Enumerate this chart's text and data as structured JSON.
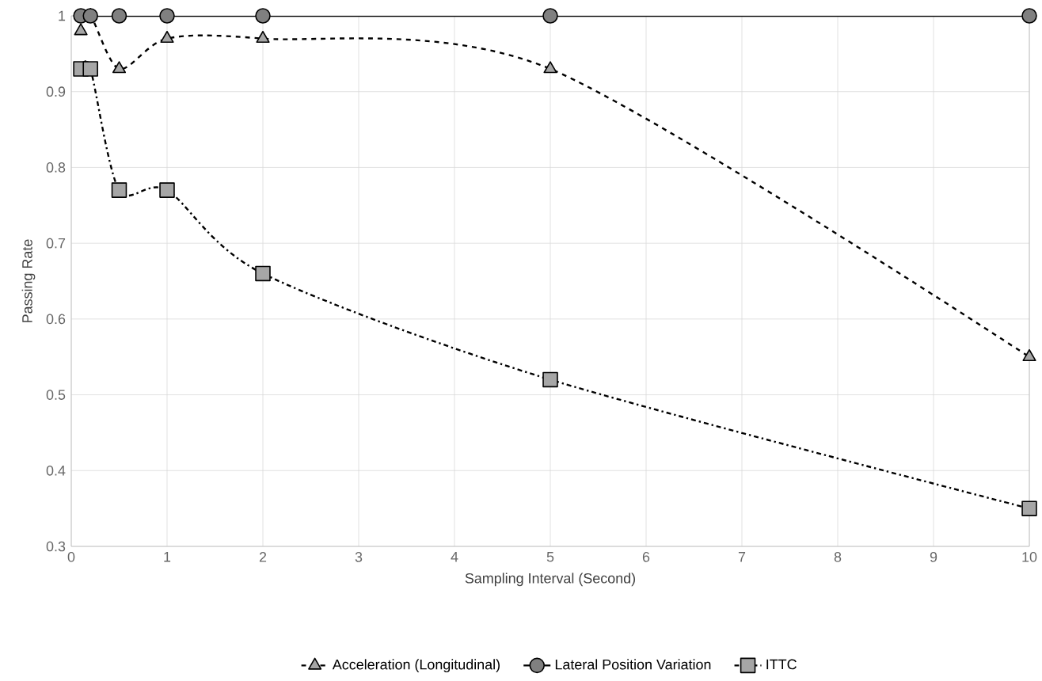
{
  "chart_data": {
    "type": "line",
    "xlabel": "Sampling Interval (Second)",
    "ylabel": "Passing Rate",
    "x": [
      0.1,
      0.2,
      0.5,
      1,
      2,
      5,
      10
    ],
    "series": [
      {
        "name": "Acceleration (Longitudinal)",
        "color": "#a6a6a6",
        "marker": "triangle",
        "line_style": "dashed",
        "values": [
          0.98,
          1,
          0.93,
          0.97,
          0.97,
          0.93,
          0.55
        ]
      },
      {
        "name": "Lateral Position Variation",
        "color": "#808080",
        "marker": "circle",
        "line_style": "solid",
        "values": [
          1,
          1,
          1,
          1,
          1,
          1,
          1
        ]
      },
      {
        "name": "ITTC",
        "color": "#a6a6a6",
        "marker": "square",
        "line_style": "dashdot",
        "values": [
          0.93,
          0.93,
          0.77,
          0.77,
          0.66,
          0.52,
          0.35
        ]
      }
    ],
    "xlim": [
      0,
      10
    ],
    "xticks": [
      0,
      1,
      2,
      3,
      4,
      5,
      6,
      7,
      8,
      9,
      10
    ],
    "ylim": [
      0.3,
      1
    ],
    "yticks": [
      0.3,
      0.4,
      0.5,
      0.6,
      0.7,
      0.8,
      0.9,
      1
    ],
    "grid": true,
    "legend": "bottom"
  }
}
